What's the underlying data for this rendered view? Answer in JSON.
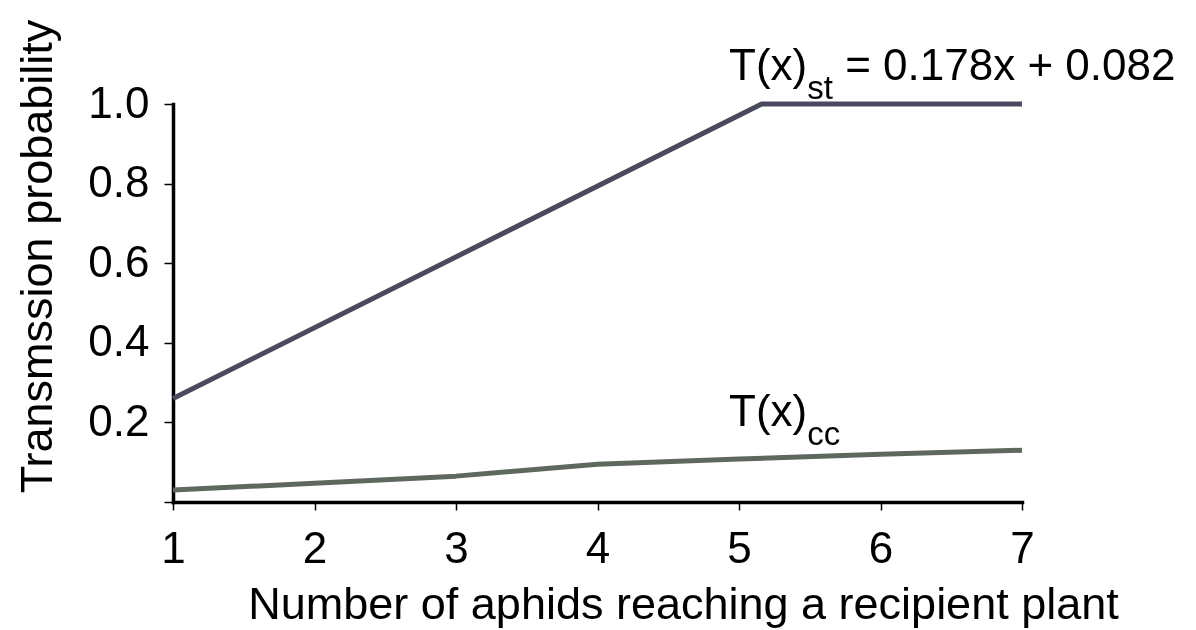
{
  "chart_data": {
    "type": "line",
    "xlabel": "Number of aphids reaching a recipient plant",
    "ylabel": "Transmssion probability",
    "xlim": [
      1,
      7
    ],
    "ylim": [
      0,
      1.0
    ],
    "xticks": [
      1,
      2,
      3,
      4,
      5,
      6,
      7
    ],
    "yticks": [
      {
        "value": 0,
        "label": null
      },
      0.2,
      0.4,
      0.6,
      0.8,
      {
        "value": 1,
        "label": "1.0"
      }
    ],
    "series": [
      {
        "name": "T(x)$_{st}$ = 0.178x + 0.082",
        "color": "#4a4a5e",
        "x": [
          1,
          5.16,
          7
        ],
        "values": [
          0.26,
          1.0,
          1.0
        ]
      },
      {
        "name": "T(x)$_{cc}$",
        "color": "#5e685e",
        "x": [
          1,
          2,
          3,
          4,
          5,
          6,
          7
        ],
        "values": [
          0.03,
          0.047,
          0.065,
          0.095,
          0.108,
          0.12,
          0.13
        ]
      }
    ],
    "grid": false,
    "marker": "none",
    "line_style": "solid"
  }
}
